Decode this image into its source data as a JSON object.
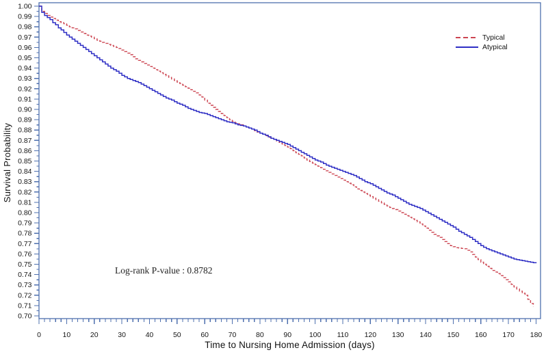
{
  "chart_data": {
    "type": "line",
    "subtype": "kaplan-meier-step",
    "title": "",
    "xlabel": "Time to Nursing Home Admission (days)",
    "ylabel": "Survival Probability",
    "annotation": "Log-rank P-value : 0.8782",
    "xlim": [
      0,
      180
    ],
    "ylim": [
      0.7,
      1.0
    ],
    "x_major_tick_step": 10,
    "x_minor_tick_step": 2,
    "y_major_tick_step": 0.01,
    "y_minor_tick_step": 0.005,
    "grid": false,
    "legend_position": "top-right-inside",
    "frame_color": "#4d6fae",
    "tick_label_color": "#151515",
    "series": [
      {
        "name": "Typical",
        "color": "#cc4450",
        "style": "dashed",
        "points": [
          [
            0,
            1.0
          ],
          [
            1,
            0.995
          ],
          [
            3,
            0.991
          ],
          [
            5,
            0.988
          ],
          [
            7,
            0.985
          ],
          [
            9,
            0.983
          ],
          [
            11,
            0.98
          ],
          [
            13,
            0.978
          ],
          [
            15,
            0.975
          ],
          [
            17,
            0.972
          ],
          [
            19,
            0.97
          ],
          [
            21,
            0.967
          ],
          [
            24,
            0.964
          ],
          [
            27,
            0.961
          ],
          [
            29,
            0.959
          ],
          [
            31,
            0.956
          ],
          [
            33,
            0.953
          ],
          [
            35,
            0.949
          ],
          [
            37,
            0.946
          ],
          [
            39,
            0.943
          ],
          [
            41,
            0.94
          ],
          [
            43,
            0.937
          ],
          [
            45,
            0.934
          ],
          [
            47,
            0.931
          ],
          [
            49,
            0.928
          ],
          [
            51,
            0.925
          ],
          [
            53,
            0.922
          ],
          [
            55,
            0.919
          ],
          [
            57,
            0.916
          ],
          [
            59,
            0.912
          ],
          [
            61,
            0.906
          ],
          [
            63,
            0.902
          ],
          [
            65,
            0.898
          ],
          [
            67,
            0.894
          ],
          [
            69,
            0.89
          ],
          [
            71,
            0.887
          ],
          [
            73,
            0.885
          ],
          [
            75,
            0.883
          ],
          [
            77,
            0.881
          ],
          [
            79,
            0.878
          ],
          [
            81,
            0.876
          ],
          [
            83,
            0.873
          ],
          [
            85,
            0.871
          ],
          [
            87,
            0.868
          ],
          [
            89,
            0.865
          ],
          [
            91,
            0.862
          ],
          [
            93,
            0.858
          ],
          [
            95,
            0.855
          ],
          [
            97,
            0.851
          ],
          [
            99,
            0.848
          ],
          [
            101,
            0.845
          ],
          [
            103,
            0.842
          ],
          [
            105,
            0.839
          ],
          [
            107,
            0.836
          ],
          [
            109,
            0.833
          ],
          [
            111,
            0.83
          ],
          [
            113,
            0.827
          ],
          [
            115,
            0.823
          ],
          [
            117,
            0.82
          ],
          [
            119,
            0.817
          ],
          [
            121,
            0.814
          ],
          [
            123,
            0.811
          ],
          [
            125,
            0.808
          ],
          [
            127,
            0.805
          ],
          [
            129,
            0.803
          ],
          [
            131,
            0.8
          ],
          [
            133,
            0.797
          ],
          [
            135,
            0.794
          ],
          [
            137,
            0.791
          ],
          [
            139,
            0.787
          ],
          [
            141,
            0.783
          ],
          [
            143,
            0.779
          ],
          [
            145,
            0.776
          ],
          [
            147,
            0.772
          ],
          [
            149,
            0.768
          ],
          [
            151,
            0.766
          ],
          [
            154,
            0.765
          ],
          [
            156,
            0.762
          ],
          [
            158,
            0.757
          ],
          [
            160,
            0.752
          ],
          [
            162,
            0.748
          ],
          [
            164,
            0.744
          ],
          [
            166,
            0.741
          ],
          [
            168,
            0.737
          ],
          [
            170,
            0.733
          ],
          [
            172,
            0.728
          ],
          [
            174,
            0.724
          ],
          [
            176,
            0.72
          ],
          [
            177,
            0.716
          ],
          [
            178,
            0.712
          ],
          [
            179,
            0.709
          ]
        ]
      },
      {
        "name": "Atypical",
        "color": "#2d2dc4",
        "style": "solid",
        "points": [
          [
            0,
            1.0
          ],
          [
            1,
            0.994
          ],
          [
            2,
            0.991
          ],
          [
            3,
            0.989
          ],
          [
            4,
            0.987
          ],
          [
            5,
            0.984
          ],
          [
            6,
            0.982
          ],
          [
            7,
            0.979
          ],
          [
            8,
            0.977
          ],
          [
            10,
            0.972
          ],
          [
            12,
            0.968
          ],
          [
            14,
            0.964
          ],
          [
            16,
            0.96
          ],
          [
            18,
            0.956
          ],
          [
            20,
            0.952
          ],
          [
            22,
            0.948
          ],
          [
            24,
            0.944
          ],
          [
            26,
            0.94
          ],
          [
            28,
            0.937
          ],
          [
            30,
            0.933
          ],
          [
            32,
            0.93
          ],
          [
            34,
            0.928
          ],
          [
            36,
            0.926
          ],
          [
            38,
            0.923
          ],
          [
            40,
            0.92
          ],
          [
            42,
            0.917
          ],
          [
            44,
            0.914
          ],
          [
            46,
            0.911
          ],
          [
            48,
            0.909
          ],
          [
            50,
            0.906
          ],
          [
            52,
            0.904
          ],
          [
            54,
            0.901
          ],
          [
            56,
            0.899
          ],
          [
            58,
            0.897
          ],
          [
            60,
            0.896
          ],
          [
            62,
            0.894
          ],
          [
            64,
            0.892
          ],
          [
            66,
            0.89
          ],
          [
            68,
            0.888
          ],
          [
            70,
            0.887
          ],
          [
            72,
            0.885
          ],
          [
            74,
            0.884
          ],
          [
            76,
            0.882
          ],
          [
            78,
            0.88
          ],
          [
            80,
            0.877
          ],
          [
            82,
            0.875
          ],
          [
            84,
            0.872
          ],
          [
            86,
            0.87
          ],
          [
            88,
            0.868
          ],
          [
            90,
            0.866
          ],
          [
            92,
            0.863
          ],
          [
            94,
            0.86
          ],
          [
            96,
            0.857
          ],
          [
            98,
            0.854
          ],
          [
            100,
            0.851
          ],
          [
            102,
            0.849
          ],
          [
            104,
            0.846
          ],
          [
            106,
            0.844
          ],
          [
            108,
            0.842
          ],
          [
            110,
            0.84
          ],
          [
            112,
            0.838
          ],
          [
            114,
            0.836
          ],
          [
            116,
            0.833
          ],
          [
            118,
            0.83
          ],
          [
            120,
            0.828
          ],
          [
            122,
            0.825
          ],
          [
            124,
            0.822
          ],
          [
            126,
            0.819
          ],
          [
            128,
            0.817
          ],
          [
            130,
            0.814
          ],
          [
            132,
            0.811
          ],
          [
            134,
            0.808
          ],
          [
            136,
            0.806
          ],
          [
            138,
            0.804
          ],
          [
            140,
            0.801
          ],
          [
            142,
            0.798
          ],
          [
            144,
            0.795
          ],
          [
            146,
            0.792
          ],
          [
            148,
            0.789
          ],
          [
            150,
            0.786
          ],
          [
            152,
            0.782
          ],
          [
            154,
            0.779
          ],
          [
            156,
            0.776
          ],
          [
            158,
            0.772
          ],
          [
            160,
            0.768
          ],
          [
            162,
            0.765
          ],
          [
            164,
            0.763
          ],
          [
            166,
            0.761
          ],
          [
            168,
            0.759
          ],
          [
            170,
            0.757
          ],
          [
            172,
            0.755
          ],
          [
            174,
            0.754
          ],
          [
            176,
            0.753
          ],
          [
            178,
            0.752
          ],
          [
            180,
            0.751
          ]
        ]
      }
    ]
  }
}
